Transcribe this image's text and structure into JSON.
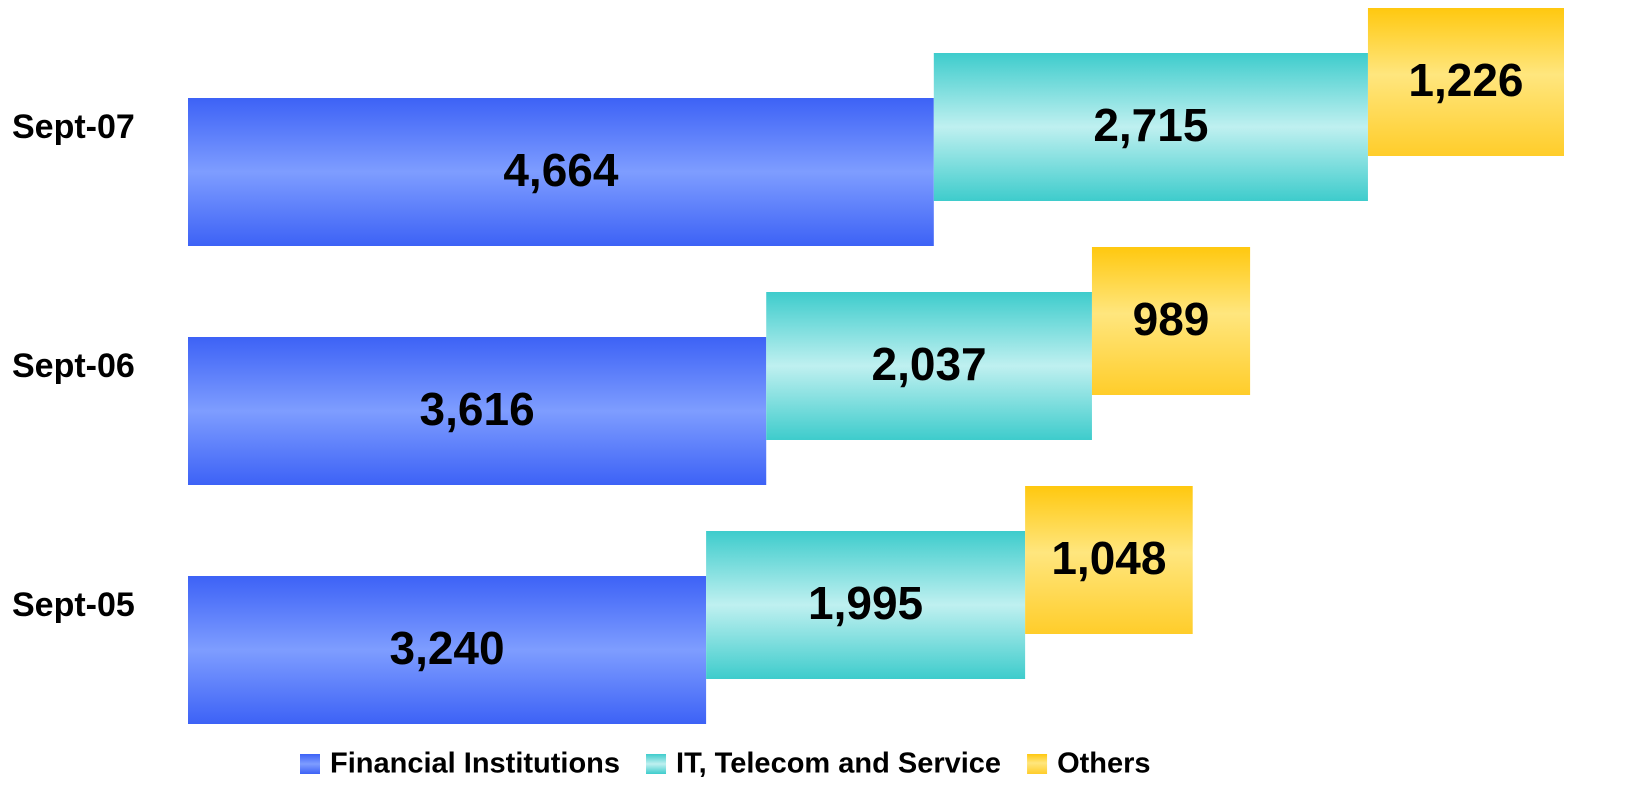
{
  "chart_data": {
    "type": "bar",
    "orientation": "horizontal",
    "stacked": true,
    "categories": [
      "Sept-07",
      "Sept-06",
      "Sept-05"
    ],
    "series": [
      {
        "name": "Financial Institutions",
        "color": "#4a6ff8",
        "values": [
          4664,
          3616,
          3240
        ],
        "value_labels": [
          "4,664",
          "3,616",
          "3,240"
        ]
      },
      {
        "name": "IT, Telecom and Service",
        "color": "#5fd6d6",
        "values": [
          2715,
          2037,
          1995
        ],
        "value_labels": [
          "2,715",
          "2,037",
          "1,995"
        ]
      },
      {
        "name": "Others",
        "color": "#ffd23a",
        "values": [
          1226,
          989,
          1048
        ],
        "value_labels": [
          "1,226",
          "989",
          "1,048"
        ]
      }
    ],
    "legend": "bottom"
  }
}
